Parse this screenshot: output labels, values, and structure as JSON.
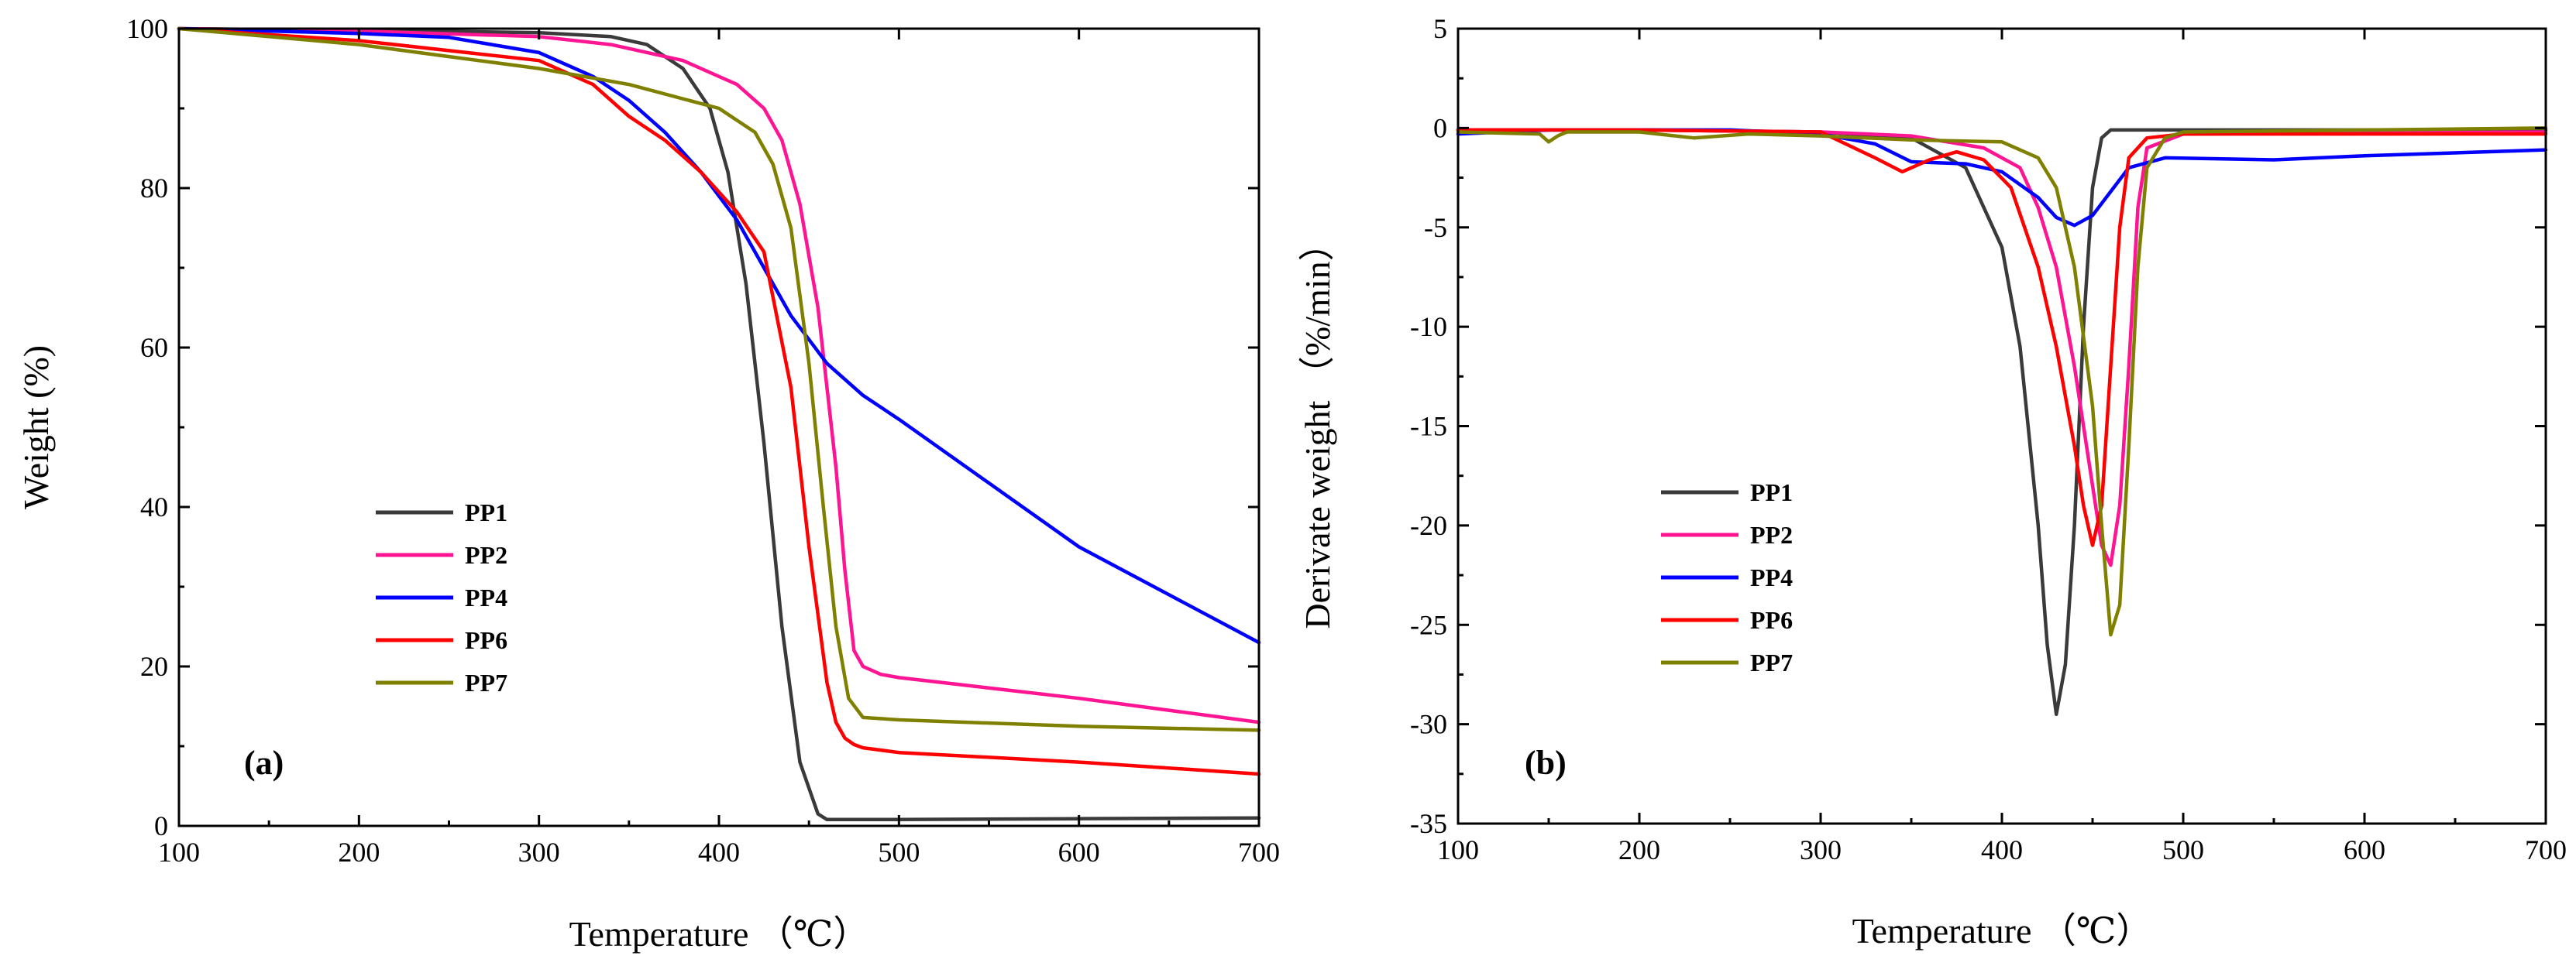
{
  "chart_data": [
    {
      "id": "a",
      "type": "line",
      "panel_label": "(a)",
      "xlabel": "Temperature  （℃）",
      "ylabel": "Weight (%)",
      "xlim": [
        100,
        700
      ],
      "ylim": [
        0,
        100
      ],
      "xticks": [
        100,
        200,
        300,
        400,
        500,
        600,
        700
      ],
      "yticks": [
        0,
        20,
        40,
        60,
        80,
        100
      ],
      "legend_position": "lower-left",
      "series": [
        {
          "name": "PP1",
          "color": "#3a3a3a",
          "x": [
            100,
            200,
            300,
            340,
            360,
            380,
            395,
            405,
            415,
            425,
            435,
            445,
            455,
            460,
            470,
            500,
            600,
            700
          ],
          "y": [
            100,
            99.8,
            99.5,
            99,
            98,
            95,
            90,
            82,
            68,
            48,
            25,
            8,
            1.5,
            0.8,
            0.8,
            0.8,
            0.9,
            1.0
          ]
        },
        {
          "name": "PP2",
          "color": "#ff1493",
          "x": [
            100,
            200,
            300,
            340,
            380,
            410,
            425,
            435,
            445,
            455,
            465,
            470,
            475,
            480,
            490,
            500,
            600,
            700
          ],
          "y": [
            100,
            99.7,
            99,
            98,
            96,
            93,
            90,
            86,
            78,
            65,
            45,
            32,
            22,
            20,
            19,
            18.6,
            16,
            13
          ]
        },
        {
          "name": "PP4",
          "color": "#0000ff",
          "x": [
            100,
            150,
            200,
            250,
            300,
            330,
            350,
            370,
            390,
            410,
            425,
            440,
            450,
            460,
            480,
            500,
            550,
            600,
            650,
            700
          ],
          "y": [
            100,
            99.7,
            99.4,
            98.9,
            97,
            94,
            91,
            87,
            82,
            76,
            70,
            64,
            61,
            58,
            54,
            51,
            43,
            35,
            29,
            23
          ]
        },
        {
          "name": "PP6",
          "color": "#ff0000",
          "x": [
            100,
            200,
            300,
            330,
            350,
            370,
            390,
            410,
            425,
            440,
            450,
            460,
            465,
            470,
            475,
            480,
            500,
            600,
            700
          ],
          "y": [
            100,
            98.5,
            96,
            93,
            89,
            86,
            82,
            77,
            72,
            55,
            35,
            18,
            13,
            11,
            10.2,
            9.8,
            9.2,
            8,
            6.5
          ]
        },
        {
          "name": "PP7",
          "color": "#808000",
          "x": [
            100,
            150,
            200,
            250,
            300,
            350,
            400,
            420,
            430,
            440,
            450,
            458,
            465,
            472,
            480,
            500,
            600,
            700
          ],
          "y": [
            100,
            99,
            98,
            96.5,
            95,
            93,
            90,
            87,
            83,
            75,
            58,
            40,
            25,
            16,
            13.6,
            13.3,
            12.5,
            12
          ]
        }
      ]
    },
    {
      "id": "b",
      "type": "line",
      "panel_label": "(b)",
      "xlabel": "Temperature  （℃）",
      "ylabel": "Derivate weight  （%/min）",
      "xlim": [
        100,
        700
      ],
      "ylim": [
        -35,
        5
      ],
      "xticks": [
        100,
        200,
        300,
        400,
        500,
        600,
        700
      ],
      "yticks": [
        5,
        0,
        -5,
        -10,
        -15,
        -20,
        -25,
        -30,
        -35
      ],
      "legend_position": "lower-left",
      "series": [
        {
          "name": "PP1",
          "color": "#3a3a3a",
          "x": [
            100,
            200,
            300,
            350,
            380,
            400,
            410,
            420,
            425,
            430,
            435,
            440,
            445,
            450,
            455,
            460,
            500,
            700
          ],
          "y": [
            -0.1,
            -0.1,
            -0.2,
            -0.5,
            -2,
            -6,
            -11,
            -20,
            -26,
            -29.5,
            -27,
            -20,
            -10,
            -3,
            -0.5,
            -0.1,
            -0.1,
            -0.1
          ]
        },
        {
          "name": "PP2",
          "color": "#ff1493",
          "x": [
            100,
            200,
            300,
            350,
            390,
            410,
            420,
            430,
            440,
            445,
            450,
            455,
            460,
            465,
            470,
            475,
            480,
            500,
            700
          ],
          "y": [
            -0.1,
            -0.1,
            -0.2,
            -0.4,
            -1,
            -2,
            -4,
            -7,
            -12,
            -15,
            -18,
            -21,
            -22,
            -19,
            -12,
            -4,
            -1,
            -0.3,
            -0.2
          ]
        },
        {
          "name": "PP4",
          "color": "#0000ff",
          "x": [
            100,
            150,
            200,
            250,
            300,
            330,
            350,
            380,
            400,
            420,
            430,
            440,
            450,
            460,
            470,
            490,
            550,
            600,
            700
          ],
          "y": [
            -0.3,
            -0.1,
            -0.1,
            -0.1,
            -0.3,
            -0.8,
            -1.7,
            -1.8,
            -2.2,
            -3.5,
            -4.5,
            -4.9,
            -4.4,
            -3.2,
            -2,
            -1.5,
            -1.6,
            -1.4,
            -1.1
          ]
        },
        {
          "name": "PP6",
          "color": "#ff0000",
          "x": [
            100,
            200,
            300,
            330,
            345,
            360,
            375,
            390,
            405,
            420,
            430,
            440,
            445,
            450,
            455,
            460,
            465,
            470,
            480,
            500,
            700
          ],
          "y": [
            -0.1,
            -0.1,
            -0.2,
            -1.5,
            -2.2,
            -1.6,
            -1.2,
            -1.6,
            -3,
            -7,
            -11,
            -16,
            -19,
            -21,
            -19,
            -12,
            -5,
            -1.5,
            -0.5,
            -0.3,
            -0.3
          ]
        },
        {
          "name": "PP7",
          "color": "#808000",
          "x": [
            100,
            145,
            150,
            155,
            160,
            200,
            230,
            260,
            300,
            350,
            400,
            420,
            430,
            440,
            450,
            455,
            460,
            465,
            470,
            475,
            480,
            490,
            500,
            700
          ],
          "y": [
            -0.2,
            -0.3,
            -0.7,
            -0.4,
            -0.2,
            -0.2,
            -0.5,
            -0.3,
            -0.4,
            -0.6,
            -0.7,
            -1.5,
            -3,
            -7,
            -14,
            -20,
            -25.5,
            -24,
            -16,
            -7,
            -2,
            -0.5,
            -0.2,
            0
          ]
        }
      ]
    }
  ]
}
